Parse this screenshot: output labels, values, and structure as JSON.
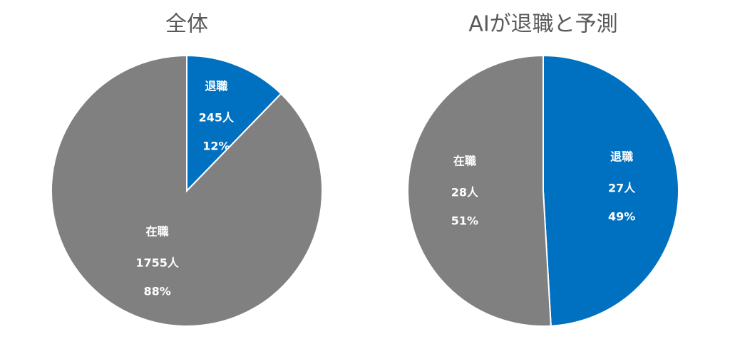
{
  "chart_data": [
    {
      "type": "pie",
      "title": "全体",
      "categories": [
        "退職",
        "在職"
      ],
      "values": [
        245,
        1755
      ],
      "value_labels": [
        "245人",
        "1755人"
      ],
      "percent_values": [
        12,
        88
      ],
      "percent_labels": [
        "12%",
        "88%"
      ],
      "colors": [
        "#0070c0",
        "#808080"
      ]
    },
    {
      "type": "pie",
      "title": "AIが退職と予測",
      "categories": [
        "退職",
        "在職"
      ],
      "values": [
        27,
        28
      ],
      "value_labels": [
        "27人",
        "28人"
      ],
      "percent_values": [
        49,
        51
      ],
      "percent_labels": [
        "49%",
        "51%"
      ],
      "colors": [
        "#0070c0",
        "#808080"
      ]
    }
  ]
}
